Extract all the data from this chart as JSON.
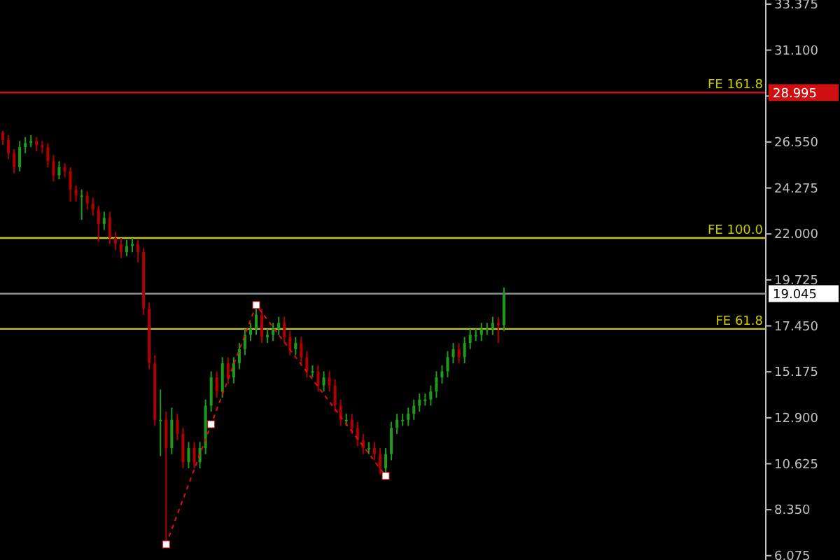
{
  "chart_data": {
    "type": "candlestick",
    "colors": [
      "#b00000",
      "#b00000",
      "#b00000",
      "#1f9a1f",
      "#1f9a1f",
      "#1f9a1f",
      "#b00000",
      "#b00000",
      "#b00000",
      "#b00000",
      "#1f9a1f",
      "#b00000",
      "#b00000",
      "#b00000",
      "#1f9a1f",
      "#b00000",
      "#b00000",
      "#b00000",
      "#1f9a1f",
      "#b00000",
      "#b00000",
      "#b00000",
      "#1f9a1f",
      "#1f9a1f",
      "#b00000",
      "#b00000",
      "#b00000",
      "#b00000",
      "#1f9a1f",
      "#b00000",
      "#1f9a1f",
      "#b00000",
      "#b00000",
      "#1f9a1f",
      "#b00000",
      "#1f9a1f",
      "#1f9a1f",
      "#1f9a1f",
      "#b00000",
      "#1f9a1f",
      "#b00000",
      "#1f9a1f",
      "#1f9a1f",
      "#1f9a1f",
      "#1f9a1f",
      "#1f9a1f",
      "#b00000",
      "#1f9a1f",
      "#1f9a1f",
      "#1f9a1f",
      "#b00000",
      "#b00000",
      "#1f9a1f",
      "#b00000",
      "#b00000",
      "#1f9a1f",
      "#b00000",
      "#1f9a1f",
      "#b00000",
      "#b00000",
      "#b00000",
      "#1f9a1f",
      "#b00000",
      "#b00000",
      "#b00000",
      "#1f9a1f",
      "#b00000",
      "#b00000",
      "#1f9a1f",
      "#1f9a1f",
      "#1f9a1f",
      "#1f9a1f",
      "#1f9a1f",
      "#1f9a1f",
      "#1f9a1f",
      "#1f9a1f",
      "#1f9a1f",
      "#1f9a1f",
      "#1f9a1f",
      "#1f9a1f",
      "#1f9a1f",
      "#b00000",
      "#1f9a1f",
      "#1f9a1f",
      "#1f9a1f",
      "#1f9a1f",
      "#1f9a1f",
      "#1f9a1f",
      "#b00000",
      "#1f9a1f",
      null,
      null,
      null,
      null,
      null,
      null,
      null,
      null,
      null,
      null,
      null,
      null,
      null,
      null,
      null,
      null,
      null,
      null,
      null,
      null,
      null,
      null,
      null,
      null,
      null,
      null,
      null,
      null,
      null,
      null,
      null,
      null,
      null,
      null,
      null,
      null,
      null,
      null,
      null,
      null,
      null,
      null,
      null,
      null,
      null,
      null
    ],
    "categories": [
      null,
      null,
      null,
      null,
      null,
      null,
      null,
      null,
      null,
      null,
      null,
      null,
      null,
      null,
      null,
      null,
      null,
      null,
      null,
      null,
      null,
      null,
      null,
      null,
      null,
      null,
      null,
      null,
      null,
      null,
      null,
      null,
      null,
      null,
      null,
      null,
      null,
      null,
      null,
      null,
      null,
      null,
      null,
      null,
      null,
      null,
      null,
      null,
      null,
      null,
      null,
      null,
      null,
      null,
      null,
      null,
      null,
      null,
      null,
      null,
      null,
      null,
      null,
      null,
      null,
      null,
      null,
      null,
      null,
      null,
      null,
      null,
      null,
      null,
      null,
      null,
      null,
      null,
      null,
      null,
      null,
      null,
      null,
      null,
      null,
      null,
      null,
      null,
      null,
      null,
      null,
      null,
      null,
      null,
      null,
      null,
      null,
      null,
      null,
      null,
      null,
      null,
      null,
      null,
      null,
      null,
      null,
      null,
      null,
      null,
      null,
      null,
      null,
      null,
      null,
      null,
      null,
      null,
      null,
      null,
      null,
      null,
      null,
      null,
      null,
      null,
      null,
      null,
      null,
      null,
      null,
      null,
      null,
      null,
      null,
      null
    ],
    "ohlc": [
      [
        27.0,
        27.1,
        26.4,
        26.65
      ],
      [
        26.65,
        26.9,
        25.7,
        26.0
      ],
      [
        26.0,
        26.2,
        25.0,
        25.3
      ],
      [
        25.3,
        26.6,
        25.1,
        26.3
      ],
      [
        26.3,
        26.8,
        26.0,
        26.5
      ],
      [
        26.5,
        26.9,
        26.3,
        26.6
      ],
      [
        26.6,
        26.8,
        26.1,
        26.4
      ],
      [
        26.4,
        26.6,
        26.0,
        26.3
      ],
      [
        26.3,
        26.5,
        25.3,
        25.6
      ],
      [
        25.6,
        25.9,
        24.6,
        24.9
      ],
      [
        24.9,
        25.6,
        24.7,
        25.3
      ],
      [
        25.3,
        25.5,
        24.8,
        25.1
      ],
      [
        25.1,
        25.3,
        23.6,
        24.2
      ],
      [
        24.2,
        24.4,
        23.6,
        23.9
      ],
      [
        23.9,
        24.2,
        22.7,
        23.9
      ],
      [
        23.9,
        24.1,
        23.2,
        23.5
      ],
      [
        23.5,
        23.8,
        22.9,
        23.2
      ],
      [
        23.2,
        23.4,
        21.6,
        22.5
      ],
      [
        22.5,
        23.1,
        22.2,
        22.8
      ],
      [
        22.8,
        23.1,
        21.5,
        21.8
      ],
      [
        21.8,
        22.1,
        21.2,
        21.5
      ],
      [
        21.5,
        21.8,
        20.8,
        21.1
      ],
      [
        21.1,
        21.7,
        20.9,
        21.4
      ],
      [
        21.4,
        21.8,
        21.1,
        21.5
      ],
      [
        21.5,
        21.7,
        20.6,
        21.1
      ],
      [
        21.1,
        21.3,
        18.0,
        18.3
      ],
      [
        18.3,
        18.6,
        15.3,
        15.6
      ],
      [
        15.6,
        16.0,
        12.5,
        12.8
      ],
      [
        12.8,
        14.3,
        11.0,
        12.8
      ],
      [
        12.8,
        13.2,
        6.63,
        11.4
      ],
      [
        11.4,
        13.4,
        11.1,
        12.8
      ],
      [
        12.8,
        13.1,
        11.8,
        12.1
      ],
      [
        12.1,
        12.4,
        10.4,
        10.7
      ],
      [
        10.7,
        11.7,
        10.4,
        11.4
      ],
      [
        11.4,
        11.7,
        10.4,
        10.7
      ],
      [
        10.7,
        11.7,
        10.4,
        11.4
      ],
      [
        11.4,
        13.8,
        11.1,
        13.5
      ],
      [
        13.5,
        15.2,
        13.2,
        14.9
      ],
      [
        14.9,
        15.2,
        13.9,
        14.2
      ],
      [
        14.2,
        15.9,
        13.9,
        15.6
      ],
      [
        15.6,
        15.9,
        14.6,
        14.9
      ],
      [
        14.9,
        15.9,
        14.6,
        15.6
      ],
      [
        15.6,
        16.6,
        15.3,
        16.3
      ],
      [
        16.3,
        17.3,
        16.0,
        17.0
      ],
      [
        17.0,
        17.6,
        16.7,
        17.3
      ],
      [
        17.3,
        18.48,
        17.0,
        18.0
      ],
      [
        18.0,
        18.3,
        16.6,
        16.9
      ],
      [
        16.9,
        17.3,
        16.6,
        17.0
      ],
      [
        17.0,
        17.6,
        16.7,
        17.3
      ],
      [
        17.3,
        17.9,
        17.0,
        17.6
      ],
      [
        17.6,
        17.9,
        16.6,
        16.9
      ],
      [
        16.9,
        17.2,
        16.0,
        16.3
      ],
      [
        16.3,
        16.9,
        16.0,
        16.6
      ],
      [
        16.6,
        16.9,
        15.6,
        15.9
      ],
      [
        15.9,
        16.2,
        14.9,
        15.2
      ],
      [
        15.2,
        15.5,
        14.9,
        15.2
      ],
      [
        15.2,
        15.5,
        14.2,
        14.5
      ],
      [
        14.5,
        15.2,
        14.2,
        14.9
      ],
      [
        14.9,
        15.2,
        14.2,
        14.5
      ],
      [
        14.5,
        14.8,
        13.2,
        13.5
      ],
      [
        13.5,
        13.8,
        12.5,
        12.8
      ],
      [
        12.8,
        13.1,
        12.5,
        12.8
      ],
      [
        12.8,
        13.1,
        12.1,
        12.4
      ],
      [
        12.4,
        12.7,
        11.5,
        11.8
      ],
      [
        11.8,
        12.1,
        11.1,
        11.4
      ],
      [
        11.4,
        11.7,
        11.1,
        11.4
      ],
      [
        11.4,
        11.7,
        10.8,
        11.1
      ],
      [
        11.1,
        11.4,
        10.1,
        10.4
      ],
      [
        10.4,
        11.4,
        10.02,
        11.1
      ],
      [
        11.1,
        12.7,
        10.8,
        12.4
      ],
      [
        12.4,
        13.1,
        12.1,
        12.8
      ],
      [
        12.8,
        13.1,
        12.5,
        12.8
      ],
      [
        12.8,
        13.4,
        12.5,
        13.1
      ],
      [
        13.1,
        13.8,
        12.8,
        13.5
      ],
      [
        13.5,
        14.1,
        13.2,
        13.8
      ],
      [
        13.8,
        14.1,
        13.5,
        13.8
      ],
      [
        13.8,
        14.5,
        13.5,
        14.2
      ],
      [
        14.2,
        15.2,
        13.9,
        14.9
      ],
      [
        14.9,
        15.5,
        14.6,
        15.2
      ],
      [
        15.2,
        16.2,
        14.9,
        15.9
      ],
      [
        15.9,
        16.6,
        15.6,
        16.3
      ],
      [
        16.3,
        16.6,
        15.6,
        15.9
      ],
      [
        15.9,
        16.9,
        15.6,
        16.6
      ],
      [
        16.6,
        17.3,
        16.3,
        17.0
      ],
      [
        17.0,
        17.3,
        16.7,
        17.0
      ],
      [
        17.0,
        17.6,
        16.7,
        17.3
      ],
      [
        17.3,
        17.6,
        17.0,
        17.3
      ],
      [
        17.3,
        17.9,
        17.0,
        17.6
      ],
      [
        17.6,
        17.9,
        16.6,
        17.5
      ],
      [
        17.5,
        19.35,
        17.2,
        19.05
      ],
      null,
      null,
      null,
      null,
      null,
      null,
      null,
      null,
      null,
      null,
      null,
      null,
      null,
      null,
      null,
      null,
      null,
      null,
      null,
      null,
      null,
      null,
      null,
      null,
      null,
      null,
      null,
      null,
      null,
      null,
      null,
      null,
      null,
      null,
      null,
      null,
      null,
      null,
      null,
      null,
      null,
      null,
      null,
      null,
      null,
      null
    ],
    "series": [
      {
        "type": "line",
        "color": "#e01010",
        "line_style": "dashed",
        "marker": "square",
        "values": [
          null,
          null,
          null,
          null,
          null,
          null,
          null,
          null,
          null,
          null,
          null,
          null,
          null,
          null,
          null,
          null,
          null,
          null,
          null,
          null,
          null,
          null,
          null,
          null,
          null,
          null,
          null,
          null,
          null,
          6.63,
          null,
          null,
          null,
          null,
          null,
          null,
          null,
          12.58,
          null,
          null,
          null,
          null,
          null,
          null,
          null,
          18.48,
          null,
          null,
          null,
          null,
          null,
          null,
          null,
          null,
          null,
          null,
          null,
          null,
          null,
          null,
          null,
          null,
          null,
          null,
          null,
          null,
          null,
          null,
          10.02,
          null,
          null,
          null,
          null,
          null,
          null,
          null,
          null,
          null,
          null,
          null,
          null,
          null,
          null,
          null,
          null,
          null,
          null,
          null,
          null,
          null,
          null,
          null,
          null,
          null,
          null,
          null,
          null,
          null,
          null,
          null,
          null,
          null,
          null,
          null,
          null,
          null,
          null,
          null,
          null,
          null,
          null,
          null,
          null,
          null,
          null,
          null,
          null,
          null,
          null,
          null,
          null,
          null,
          null,
          null,
          null,
          null,
          null,
          null,
          null,
          null,
          null,
          null,
          null,
          null,
          null,
          null
        ]
      }
    ],
    "ylim": [
      5.86,
      33.58
    ],
    "yticks": [
      {
        "value": 6.075,
        "label": "6.075"
      },
      {
        "value": 8.35,
        "label": "8.350"
      },
      {
        "value": 10.625,
        "label": "10.625"
      },
      {
        "value": 12.9,
        "label": "12.900"
      },
      {
        "value": 15.175,
        "label": "15.175"
      },
      {
        "value": 17.45,
        "label": "17.450"
      },
      {
        "value": 19.725,
        "label": "19.725"
      },
      {
        "value": 22.0,
        "label": "22.000"
      },
      {
        "value": 24.275,
        "label": "24.275"
      },
      {
        "value": 26.55,
        "label": "26.550"
      },
      {
        "value": 28.825,
        "label": null
      },
      {
        "value": 31.1,
        "label": "31.100"
      },
      {
        "value": 33.375,
        "label": "33.375"
      }
    ],
    "ref_lines": [
      {
        "axis": "y",
        "value": 28.995,
        "label": "FE 161.8",
        "color": "#d01010"
      },
      {
        "axis": "y",
        "value": 21.8,
        "label": "FE 100.0",
        "color": "#c8c800"
      },
      {
        "axis": "y",
        "value": 19.045,
        "label": null,
        "color": "#8c9399"
      },
      {
        "axis": "y",
        "value": 17.3,
        "label": "FE 61.8",
        "color": "#c8c800"
      }
    ],
    "annotations": [
      "28.995",
      "19.045"
    ],
    "tick_labels": "y",
    "grid": false
  }
}
